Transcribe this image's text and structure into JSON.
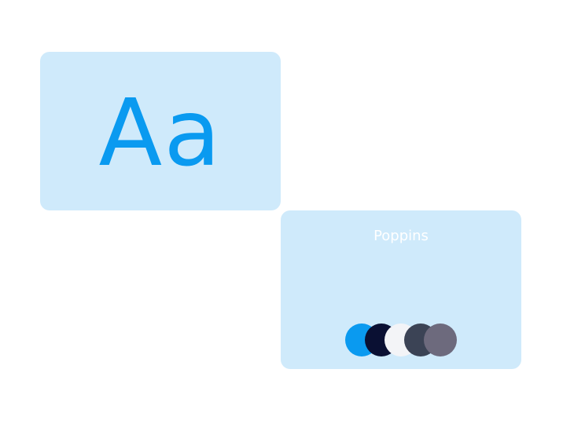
{
  "specimen": {
    "glyphs": "Aa",
    "glyph_color": "#0a9af0"
  },
  "font_card": {
    "font_name": "Poppins",
    "palette": [
      {
        "name": "swatch-sky-blue",
        "color": "#0a9af0"
      },
      {
        "name": "swatch-navy",
        "color": "#0a1033"
      },
      {
        "name": "swatch-off-white",
        "color": "#f3f4f7"
      },
      {
        "name": "swatch-slate",
        "color": "#3b4355"
      },
      {
        "name": "swatch-mauve-gray",
        "color": "#6d6a7d"
      }
    ]
  },
  "colors": {
    "card_background": "#cfeafb",
    "page_background": "#ffffff"
  }
}
